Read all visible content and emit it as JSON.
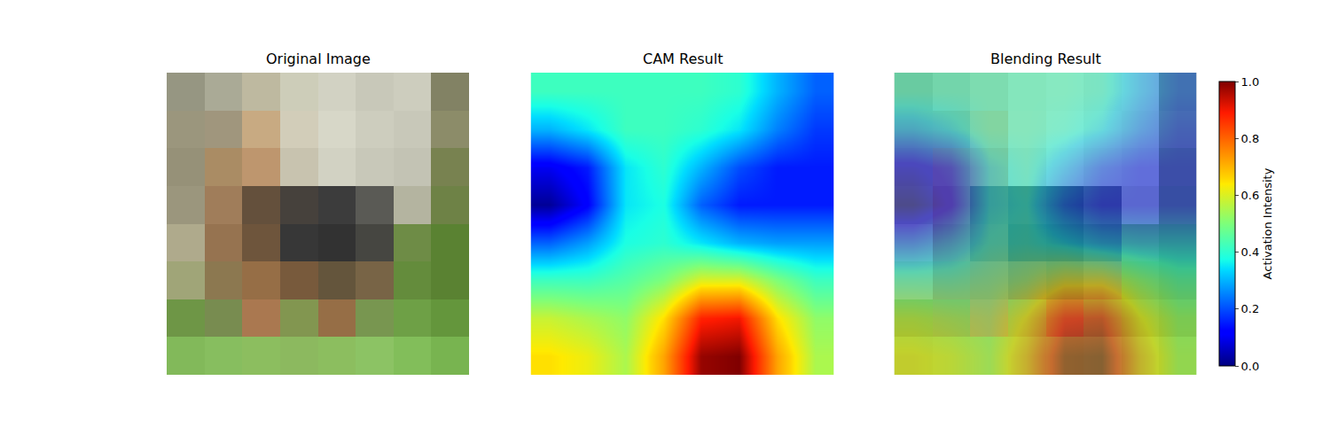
{
  "chart_data": [
    {
      "type": "image",
      "title": "Original Image",
      "tick_labels": false,
      "pixels": [
        [
          [
            150,
            150,
            130
          ],
          [
            170,
            170,
            150
          ],
          [
            190,
            185,
            160
          ],
          [
            205,
            205,
            185
          ],
          [
            210,
            210,
            195
          ],
          [
            200,
            200,
            185
          ],
          [
            205,
            205,
            190
          ],
          [
            130,
            130,
            100
          ]
        ],
        [
          [
            155,
            150,
            125
          ],
          [
            160,
            150,
            125
          ],
          [
            200,
            170,
            130
          ],
          [
            210,
            205,
            185
          ],
          [
            215,
            215,
            200
          ],
          [
            205,
            205,
            190
          ],
          [
            200,
            200,
            185
          ],
          [
            140,
            140,
            105
          ]
        ],
        [
          [
            150,
            145,
            120
          ],
          [
            170,
            140,
            100
          ],
          [
            190,
            150,
            110
          ],
          [
            200,
            195,
            175
          ],
          [
            210,
            210,
            195
          ],
          [
            200,
            200,
            185
          ],
          [
            195,
            195,
            180
          ],
          [
            120,
            130,
            80
          ]
        ],
        [
          [
            155,
            150,
            125
          ],
          [
            160,
            125,
            90
          ],
          [
            100,
            80,
            60
          ],
          [
            70,
            65,
            60
          ],
          [
            60,
            60,
            60
          ],
          [
            90,
            90,
            85
          ],
          [
            180,
            180,
            160
          ],
          [
            110,
            130,
            70
          ]
        ],
        [
          [
            175,
            170,
            140
          ],
          [
            150,
            115,
            80
          ],
          [
            110,
            85,
            60
          ],
          [
            55,
            55,
            55
          ],
          [
            50,
            50,
            50
          ],
          [
            70,
            70,
            65
          ],
          [
            110,
            140,
            70
          ],
          [
            90,
            130,
            50
          ]
        ],
        [
          [
            160,
            165,
            120
          ],
          [
            140,
            120,
            80
          ],
          [
            150,
            110,
            70
          ],
          [
            120,
            90,
            60
          ],
          [
            100,
            85,
            60
          ],
          [
            120,
            100,
            70
          ],
          [
            100,
            140,
            60
          ],
          [
            90,
            130,
            50
          ]
        ],
        [
          [
            110,
            150,
            70
          ],
          [
            120,
            140,
            80
          ],
          [
            170,
            120,
            80
          ],
          [
            130,
            150,
            80
          ],
          [
            150,
            110,
            70
          ],
          [
            120,
            150,
            80
          ],
          [
            110,
            160,
            70
          ],
          [
            100,
            150,
            60
          ]
        ],
        [
          [
            130,
            185,
            90
          ],
          [
            135,
            190,
            95
          ],
          [
            140,
            190,
            95
          ],
          [
            140,
            185,
            95
          ],
          [
            140,
            190,
            95
          ],
          [
            140,
            195,
            100
          ],
          [
            130,
            190,
            90
          ],
          [
            120,
            180,
            80
          ]
        ]
      ]
    },
    {
      "type": "heatmap",
      "title": "CAM Result",
      "tick_labels": false,
      "cells": [
        [
          0.42,
          0.42,
          0.42,
          0.42,
          0.42,
          0.4,
          0.3,
          0.22
        ],
        [
          0.3,
          0.35,
          0.42,
          0.42,
          0.4,
          0.35,
          0.25,
          0.18
        ],
        [
          0.1,
          0.15,
          0.35,
          0.4,
          0.3,
          0.2,
          0.15,
          0.15
        ],
        [
          0.02,
          0.12,
          0.35,
          0.38,
          0.22,
          0.15,
          0.15,
          0.15
        ],
        [
          0.22,
          0.28,
          0.38,
          0.4,
          0.35,
          0.3,
          0.28,
          0.28
        ],
        [
          0.42,
          0.42,
          0.45,
          0.5,
          0.6,
          0.6,
          0.5,
          0.42
        ],
        [
          0.58,
          0.55,
          0.52,
          0.65,
          0.88,
          0.9,
          0.65,
          0.52
        ],
        [
          0.65,
          0.62,
          0.55,
          0.72,
          0.98,
          1.0,
          0.72,
          0.55
        ]
      ],
      "zlim": [
        0,
        1
      ],
      "colorbar_title": "Activation Intensity",
      "colorbar_ticks": [
        {
          "value": 0,
          "label": "0.0"
        },
        {
          "value": 0.2,
          "label": "0.2"
        },
        {
          "value": 0.4,
          "label": "0.4"
        },
        {
          "value": 0.6,
          "label": "0.6"
        },
        {
          "value": 0.8,
          "label": "0.8"
        },
        {
          "value": 1,
          "label": "1.0"
        }
      ]
    },
    {
      "type": "overlay",
      "title": "Blending Result",
      "tick_labels": false,
      "pixels": [
        [
          [
            150,
            150,
            130
          ],
          [
            170,
            170,
            150
          ],
          [
            190,
            185,
            160
          ],
          [
            205,
            205,
            185
          ],
          [
            210,
            210,
            195
          ],
          [
            200,
            200,
            185
          ],
          [
            205,
            205,
            190
          ],
          [
            130,
            130,
            100
          ]
        ],
        [
          [
            155,
            150,
            125
          ],
          [
            160,
            150,
            125
          ],
          [
            200,
            170,
            130
          ],
          [
            210,
            205,
            185
          ],
          [
            215,
            215,
            200
          ],
          [
            205,
            205,
            190
          ],
          [
            200,
            200,
            185
          ],
          [
            140,
            140,
            105
          ]
        ],
        [
          [
            150,
            145,
            120
          ],
          [
            170,
            140,
            100
          ],
          [
            190,
            150,
            110
          ],
          [
            200,
            195,
            175
          ],
          [
            210,
            210,
            195
          ],
          [
            200,
            200,
            185
          ],
          [
            195,
            195,
            180
          ],
          [
            120,
            130,
            80
          ]
        ],
        [
          [
            155,
            150,
            125
          ],
          [
            160,
            125,
            90
          ],
          [
            100,
            80,
            60
          ],
          [
            70,
            65,
            60
          ],
          [
            60,
            60,
            60
          ],
          [
            90,
            90,
            85
          ],
          [
            180,
            180,
            160
          ],
          [
            110,
            130,
            70
          ]
        ],
        [
          [
            175,
            170,
            140
          ],
          [
            150,
            115,
            80
          ],
          [
            110,
            85,
            60
          ],
          [
            55,
            55,
            55
          ],
          [
            50,
            50,
            50
          ],
          [
            70,
            70,
            65
          ],
          [
            110,
            140,
            70
          ],
          [
            90,
            130,
            50
          ]
        ],
        [
          [
            160,
            165,
            120
          ],
          [
            140,
            120,
            80
          ],
          [
            150,
            110,
            70
          ],
          [
            120,
            90,
            60
          ],
          [
            100,
            85,
            60
          ],
          [
            120,
            100,
            70
          ],
          [
            100,
            140,
            60
          ],
          [
            90,
            130,
            50
          ]
        ],
        [
          [
            110,
            150,
            70
          ],
          [
            120,
            140,
            80
          ],
          [
            170,
            120,
            80
          ],
          [
            130,
            150,
            80
          ],
          [
            150,
            110,
            70
          ],
          [
            120,
            150,
            80
          ],
          [
            110,
            160,
            70
          ],
          [
            100,
            150,
            60
          ]
        ],
        [
          [
            130,
            185,
            90
          ],
          [
            135,
            190,
            95
          ],
          [
            140,
            190,
            95
          ],
          [
            140,
            185,
            95
          ],
          [
            140,
            190,
            95
          ],
          [
            140,
            195,
            100
          ],
          [
            130,
            190,
            90
          ],
          [
            120,
            180,
            80
          ]
        ]
      ],
      "cells": [
        [
          0.42,
          0.42,
          0.42,
          0.42,
          0.42,
          0.4,
          0.3,
          0.22
        ],
        [
          0.3,
          0.35,
          0.42,
          0.42,
          0.4,
          0.35,
          0.25,
          0.18
        ],
        [
          0.1,
          0.15,
          0.35,
          0.4,
          0.3,
          0.2,
          0.15,
          0.15
        ],
        [
          0.02,
          0.12,
          0.35,
          0.38,
          0.22,
          0.15,
          0.15,
          0.15
        ],
        [
          0.22,
          0.28,
          0.38,
          0.4,
          0.35,
          0.3,
          0.28,
          0.28
        ],
        [
          0.42,
          0.42,
          0.45,
          0.5,
          0.6,
          0.6,
          0.5,
          0.42
        ],
        [
          0.58,
          0.55,
          0.52,
          0.65,
          0.88,
          0.9,
          0.65,
          0.52
        ],
        [
          0.65,
          0.62,
          0.55,
          0.72,
          0.98,
          1.0,
          0.72,
          0.55
        ]
      ],
      "zlim": [
        0,
        1
      ]
    }
  ]
}
